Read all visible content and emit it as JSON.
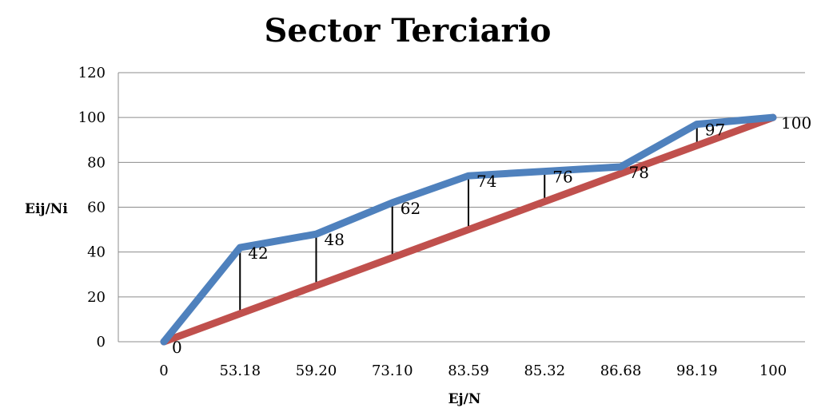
{
  "chart_data": {
    "type": "line",
    "title": "Sector Terciario",
    "xlabel": "Ej/N",
    "ylabel": "Eij/Ni",
    "categories": [
      "0",
      "53.18",
      "59.20",
      "73.10",
      "83.59",
      "85.32",
      "86.68",
      "98.19",
      "100"
    ],
    "ylim": [
      0,
      120
    ],
    "yticks": [
      0,
      20,
      40,
      60,
      80,
      100,
      120
    ],
    "grid": true,
    "legend": "none",
    "series": [
      {
        "values": [
          0,
          42,
          48,
          62,
          74,
          76,
          78,
          97,
          100
        ],
        "color": "#4F81BD",
        "data_labels": [
          "0",
          "42",
          "48",
          "62",
          "74",
          "76",
          "78",
          "97",
          "100"
        ]
      },
      {
        "values": [
          0,
          12.5,
          25,
          37.5,
          50,
          62.5,
          75,
          87.5,
          100
        ],
        "color": "#C0504D"
      }
    ],
    "drop_lines": true,
    "drop_line_color": "#000000"
  }
}
